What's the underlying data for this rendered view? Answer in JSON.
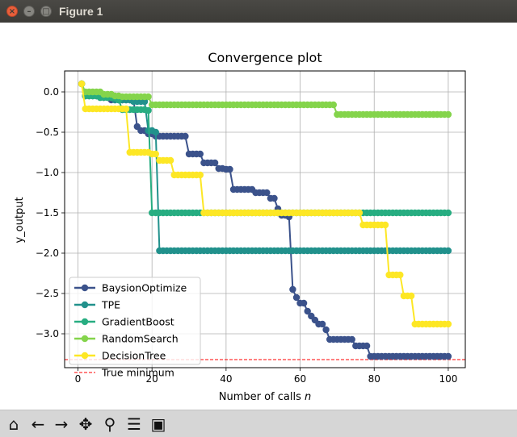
{
  "window": {
    "title": "Figure 1",
    "close_glyph": "×",
    "min_glyph": "–",
    "max_glyph": "□"
  },
  "toolbar": {
    "items": [
      {
        "name": "home-icon",
        "glyph": "⌂"
      },
      {
        "name": "back-icon",
        "glyph": "←"
      },
      {
        "name": "forward-icon",
        "glyph": "→"
      },
      {
        "name": "pan-icon",
        "glyph": "✥"
      },
      {
        "name": "zoom-icon",
        "glyph": "⚲"
      },
      {
        "name": "configure-subplots-icon",
        "glyph": "☰"
      },
      {
        "name": "save-icon",
        "glyph": "▣"
      }
    ]
  },
  "chart_data": {
    "type": "line",
    "title": "Convergence plot",
    "xlabel": "Number of calls n",
    "ylabel": "y_output",
    "xlim": [
      -3.6,
      104.6
    ],
    "ylim": [
      -3.42,
      0.26
    ],
    "xticks": [
      0,
      20,
      40,
      60,
      80,
      100
    ],
    "yticks": [
      0.0,
      -0.5,
      -1.0,
      -1.5,
      -2.0,
      -2.5,
      -3.0
    ],
    "grid": true,
    "legend_position": "lower left",
    "true_minimum": {
      "label": "True minimum",
      "value": -3.32,
      "color": "#ff0000"
    },
    "series": [
      {
        "name": "BaysionOptimize",
        "color": "#3b528b",
        "steps": [
          [
            1,
            0.1
          ],
          [
            2,
            -0.05
          ],
          [
            7,
            -0.07
          ],
          [
            9,
            -0.1
          ],
          [
            16,
            -0.43
          ],
          [
            17,
            -0.48
          ],
          [
            19,
            -0.52
          ],
          [
            21,
            -0.55
          ],
          [
            30,
            -0.77
          ],
          [
            34,
            -0.88
          ],
          [
            38,
            -0.95
          ],
          [
            40,
            -0.96
          ],
          [
            42,
            -1.21
          ],
          [
            48,
            -1.25
          ],
          [
            52,
            -1.32
          ],
          [
            54,
            -1.45
          ],
          [
            55,
            -1.53
          ],
          [
            57,
            -1.55
          ],
          [
            58,
            -2.45
          ],
          [
            59,
            -2.55
          ],
          [
            60,
            -2.62
          ],
          [
            62,
            -2.72
          ],
          [
            63,
            -2.78
          ],
          [
            64,
            -2.83
          ],
          [
            65,
            -2.88
          ],
          [
            67,
            -2.95
          ],
          [
            68,
            -3.07
          ],
          [
            75,
            -3.15
          ],
          [
            79,
            -3.28
          ]
        ]
      },
      {
        "name": "TPE",
        "color": "#21918c",
        "steps": [
          [
            1,
            0.1
          ],
          [
            2,
            -0.05
          ],
          [
            6,
            -0.07
          ],
          [
            10,
            -0.1
          ],
          [
            15,
            -0.12
          ],
          [
            19,
            -0.48
          ],
          [
            21,
            -0.5
          ],
          [
            22,
            -1.97
          ]
        ]
      },
      {
        "name": "GradientBoost",
        "color": "#27ad81",
        "steps": [
          [
            1,
            0.1
          ],
          [
            2,
            -0.05
          ],
          [
            6,
            -0.07
          ],
          [
            11,
            -0.1
          ],
          [
            12,
            -0.22
          ],
          [
            19,
            -0.23
          ],
          [
            20,
            -1.5
          ]
        ]
      },
      {
        "name": "RandomSearch",
        "color": "#84d44b",
        "steps": [
          [
            1,
            0.1
          ],
          [
            2,
            0.0
          ],
          [
            7,
            -0.03
          ],
          [
            10,
            -0.05
          ],
          [
            12,
            -0.06
          ],
          [
            20,
            -0.16
          ],
          [
            70,
            -0.28
          ]
        ]
      },
      {
        "name": "DecisionTree",
        "color": "#fde725",
        "steps": [
          [
            1,
            0.1
          ],
          [
            2,
            -0.21
          ],
          [
            14,
            -0.75
          ],
          [
            20,
            -0.77
          ],
          [
            22,
            -0.85
          ],
          [
            26,
            -1.03
          ],
          [
            34,
            -1.5
          ],
          [
            76,
            -1.5
          ],
          [
            77,
            -1.65
          ],
          [
            84,
            -2.27
          ],
          [
            88,
            -2.53
          ],
          [
            91,
            -2.88
          ]
        ]
      }
    ]
  }
}
